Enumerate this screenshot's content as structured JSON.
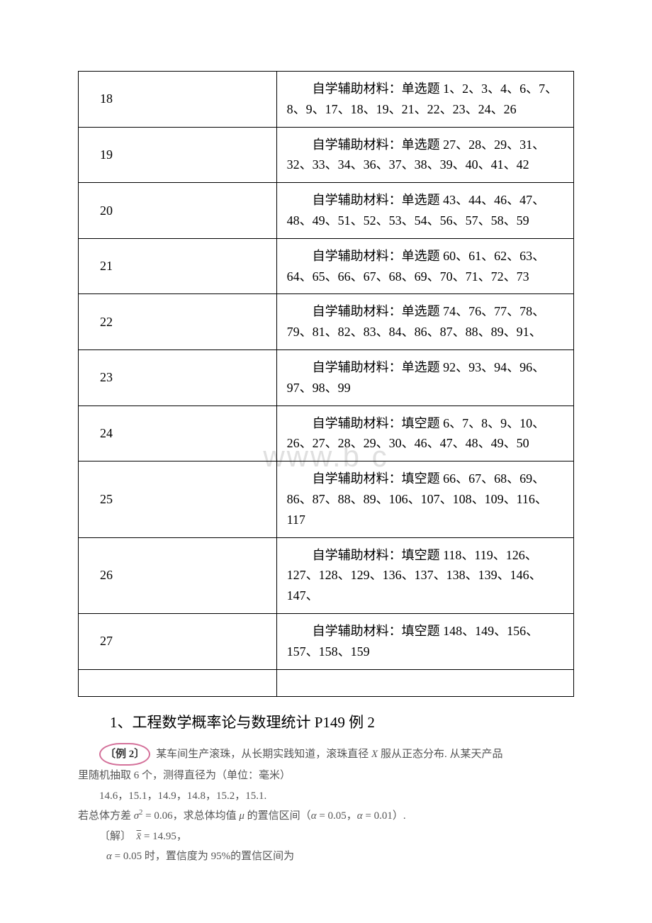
{
  "table": {
    "rows": [
      {
        "num": "18",
        "content": "自学辅助材料：单选题 1、2、3、4、6、7、8、9、17、18、19、21、22、23、24、26"
      },
      {
        "num": "19",
        "content": "自学辅助材料：单选题 27、28、29、31、32、33、34、36、37、38、39、40、41、42"
      },
      {
        "num": "20",
        "content": "自学辅助材料：单选题 43、44、46、47、48、49、51、52、53、54、56、57、58、59"
      },
      {
        "num": "21",
        "content": "自学辅助材料：单选题 60、61、62、63、64、65、66、67、68、69、70、71、72、73"
      },
      {
        "num": "22",
        "content": "自学辅助材料：单选题 74、76、77、78、79、81、82、83、84、86、87、88、89、91、"
      },
      {
        "num": "23",
        "content": "自学辅助材料：单选题 92、93、94、96、97、98、99"
      },
      {
        "num": "24",
        "content": "自学辅助材料：填空题 6、7、8、9、10、26、27、28、29、30、46、47、48、49、50"
      },
      {
        "num": "25",
        "content": "自学辅助材料：填空题 66、67、68、69、86、87、88、89、106、107、108、109、116、117"
      },
      {
        "num": "26",
        "content": "自学辅助材料：填空题 118、119、126、127、128、129、136、137、138、139、146、147、"
      },
      {
        "num": "27",
        "content": "自学辅助材料：填空题 148、149、156、157、158、159"
      }
    ]
  },
  "section_title": "1、工程数学概率论与数理统计 P149 例 2",
  "example": {
    "label": "〔例 2〕",
    "line1a": "某车间生产滚珠，从长期实践知道，滚珠直径 ",
    "line1_var": "X",
    "line1b": " 服从正态分布. 从某天产品",
    "line2": "里随机抽取 6 个，测得直径为（单位：毫米）",
    "line3": "14.6，15.1，14.9，14.8，15.2，15.1.",
    "line4a": "若总体方差 ",
    "line4_sigma": "σ",
    "line4b": " = 0.06，求总体均值 ",
    "line4_mu": "μ",
    "line4c": " 的置信区间（",
    "line4_alpha1": "α",
    "line4d": " = 0.05，",
    "line4_alpha2": "α",
    "line4e": " = 0.01）.",
    "line5a": "〔解〕　",
    "line5_xbar": "x̄",
    "line5b": " = 14.95，",
    "line6_alpha": "α",
    "line6a": " = 0.05 时，置信度为 95%的置信区间为"
  },
  "watermark": "www.b    c  "
}
